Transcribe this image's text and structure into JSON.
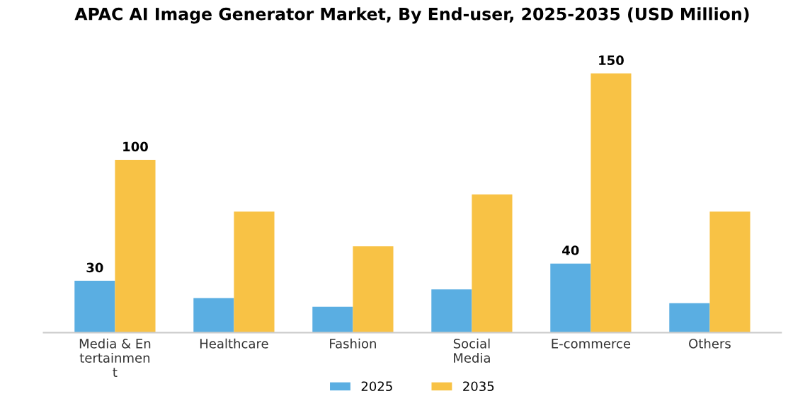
{
  "chart_data": {
    "type": "bar",
    "title": "APAC AI Image Generator Market, By End-user, 2025-2035 (USD Million)",
    "categories": [
      "Media & En\ntertainmen\nt",
      "Healthcare",
      "Fashion",
      "Social\nMedia",
      "E-commerce",
      "Others"
    ],
    "series": [
      {
        "name": "2025",
        "color": "#5aaee2",
        "values": [
          30,
          20,
          15,
          25,
          40,
          17
        ],
        "value_labels": [
          "30",
          null,
          null,
          null,
          "40",
          null
        ]
      },
      {
        "name": "2035",
        "color": "#f8c245",
        "values": [
          100,
          70,
          50,
          80,
          150,
          70
        ],
        "value_labels": [
          "100",
          null,
          null,
          null,
          "150",
          null
        ]
      }
    ],
    "legend": "bottom",
    "grid": false
  }
}
